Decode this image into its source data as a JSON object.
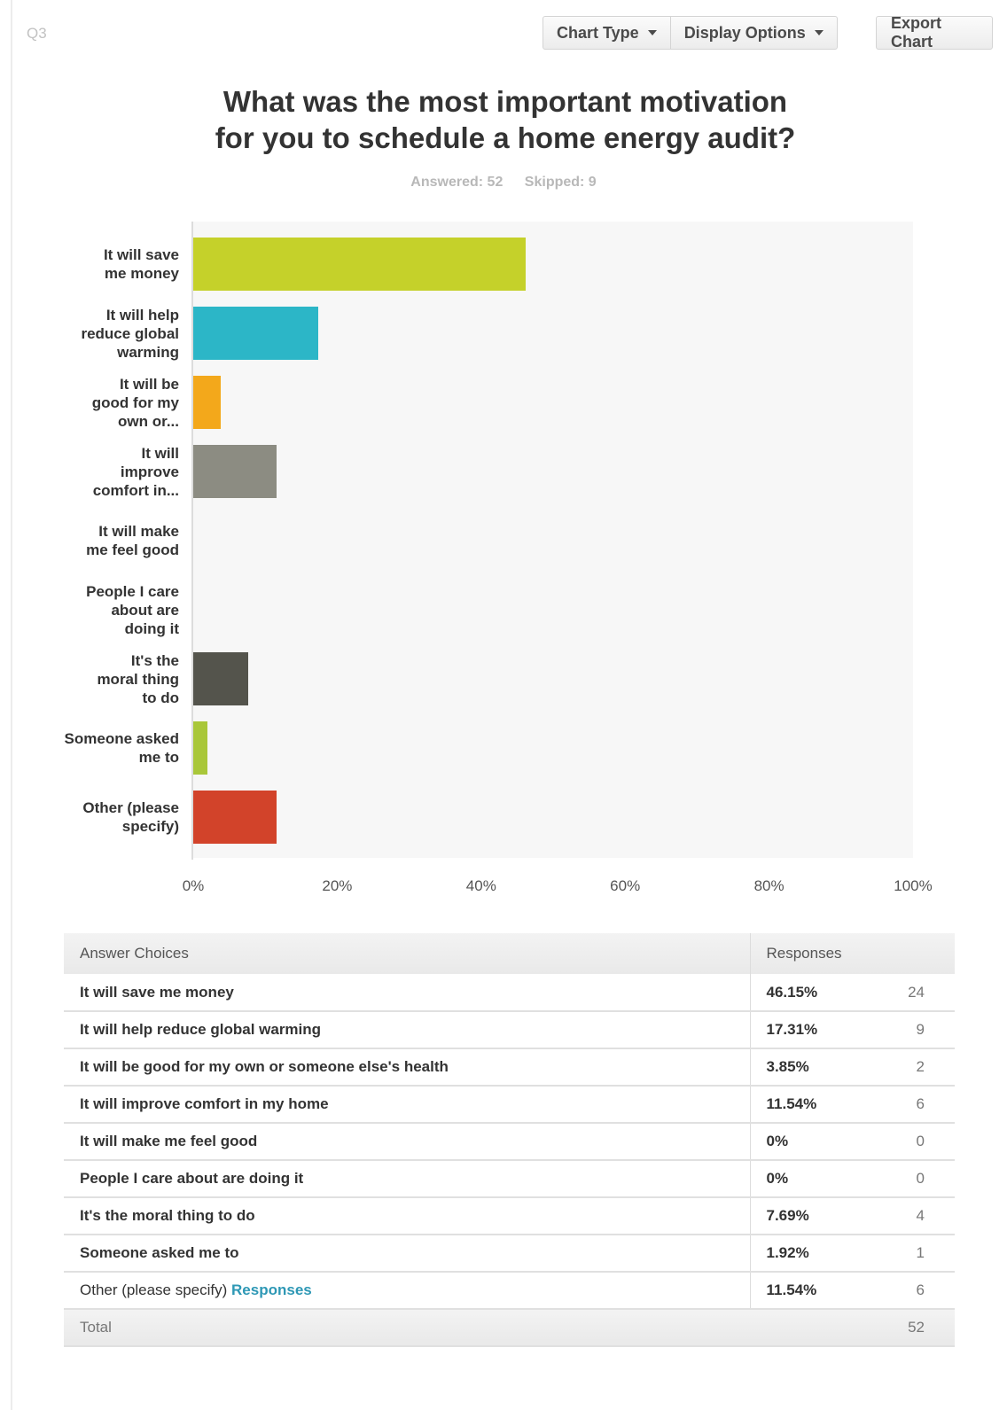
{
  "question_id": "Q3",
  "toolbar": {
    "chart_type_label": "Chart Type",
    "display_options_label": "Display Options",
    "export_label": "Export Chart"
  },
  "title_line1": "What was the most important motivation",
  "title_line2": "for you to schedule a home energy audit?",
  "answered": "Answered: 52",
  "skipped": "Skipped: 9",
  "chart_data": {
    "type": "bar",
    "orientation": "horizontal",
    "categories": [
      "It will save me money",
      "It will help reduce global warming",
      "It will be good for my own or...",
      "It will improve comfort in...",
      "It will make me feel good",
      "People I care about are doing it",
      "It's the moral thing to do",
      "Someone asked me to",
      "Other (please specify)"
    ],
    "values": [
      46.15,
      17.31,
      3.85,
      11.54,
      0,
      0,
      7.69,
      1.92,
      11.54
    ],
    "colors": [
      "#c5d12a",
      "#2cb6c7",
      "#f3a81b",
      "#8c8c82",
      "#9bbf3a",
      "#9bbf3a",
      "#54544c",
      "#a9c73a",
      "#d2432a"
    ],
    "xlim": [
      0,
      100
    ],
    "tick_labels": [
      "0%",
      "20%",
      "40%",
      "60%",
      "80%",
      "100%"
    ],
    "tick_values": [
      0,
      20,
      40,
      60,
      80,
      100
    ],
    "label_lines": [
      [
        "It will save",
        "me money"
      ],
      [
        "It will help",
        "reduce global",
        "warming"
      ],
      [
        "It will be",
        "good for my",
        "own or..."
      ],
      [
        "It will",
        "improve",
        "comfort in..."
      ],
      [
        "It will make",
        "me feel good"
      ],
      [
        "People I care",
        "about are",
        "doing it"
      ],
      [
        "It's the",
        "moral thing",
        "to do"
      ],
      [
        "Someone asked",
        "me to"
      ],
      [
        "Other (please",
        "specify)"
      ]
    ]
  },
  "table": {
    "header_answer": "Answer Choices",
    "header_responses": "Responses",
    "rows": [
      {
        "answer": "It will save me money",
        "percent": "46.15%",
        "count": "24"
      },
      {
        "answer": "It will help reduce global warming",
        "percent": "17.31%",
        "count": "9"
      },
      {
        "answer": "It will be good for my own or someone else's health",
        "percent": "3.85%",
        "count": "2"
      },
      {
        "answer": "It will improve comfort in my home",
        "percent": "11.54%",
        "count": "6"
      },
      {
        "answer": "It will make me feel good",
        "percent": "0%",
        "count": "0"
      },
      {
        "answer": "People I care about are doing it",
        "percent": "0%",
        "count": "0"
      },
      {
        "answer": "It's the moral thing to do",
        "percent": "7.69%",
        "count": "4"
      },
      {
        "answer": "Someone asked me to",
        "percent": "1.92%",
        "count": "1"
      }
    ],
    "other_row": {
      "answer": "Other (please specify)",
      "link": "Responses",
      "percent": "11.54%",
      "count": "6"
    },
    "total_label": "Total",
    "total_count": "52"
  }
}
